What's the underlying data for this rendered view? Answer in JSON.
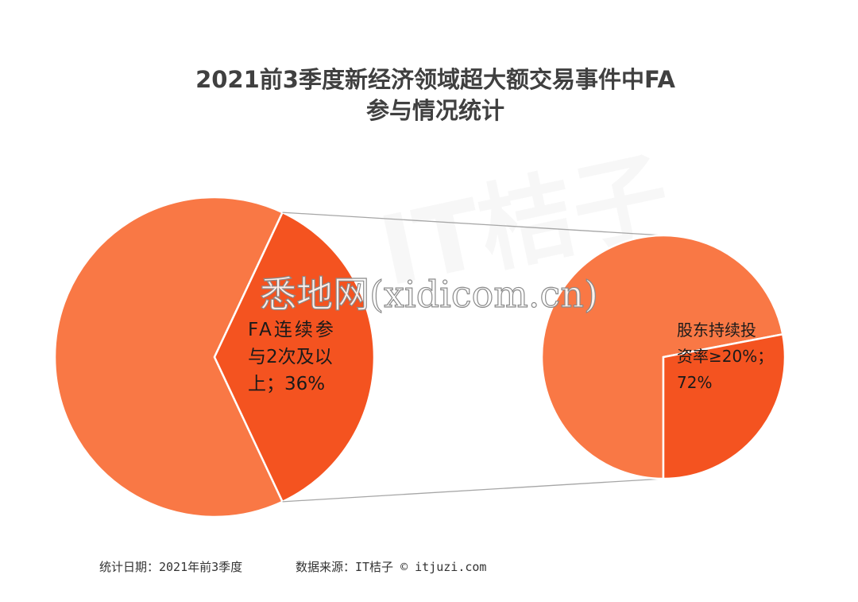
{
  "chart_data": {
    "type": "pie",
    "subtype": "pie-of-pie",
    "title_lines": [
      "2021前3季度新经济领域超大额交易事件中FA",
      "参与情况统计"
    ],
    "main_pie": {
      "slices": [
        {
          "value": 64,
          "color": "#f97845"
        },
        {
          "value": 36,
          "color": "#f45320",
          "label_lines": [
            "FA连续参",
            "与2次及以",
            "上；36%"
          ]
        }
      ]
    },
    "secondary_pie": {
      "slices": [
        {
          "value": 72,
          "color": "#f97845",
          "label_lines": [
            "股东持续投",
            "资率≥20%；",
            "72%"
          ]
        },
        {
          "value": 28,
          "color": "#f45320"
        }
      ]
    },
    "connector_color": "#a6a6a6",
    "footer": {
      "date_text": "统计日期：2021年前3季度",
      "source_text": "数据来源：IT桔子 © itjuzi.com"
    },
    "watermark": {
      "text": "悉地网(xidicom.cn)",
      "logo_text": "IT桔子"
    }
  }
}
